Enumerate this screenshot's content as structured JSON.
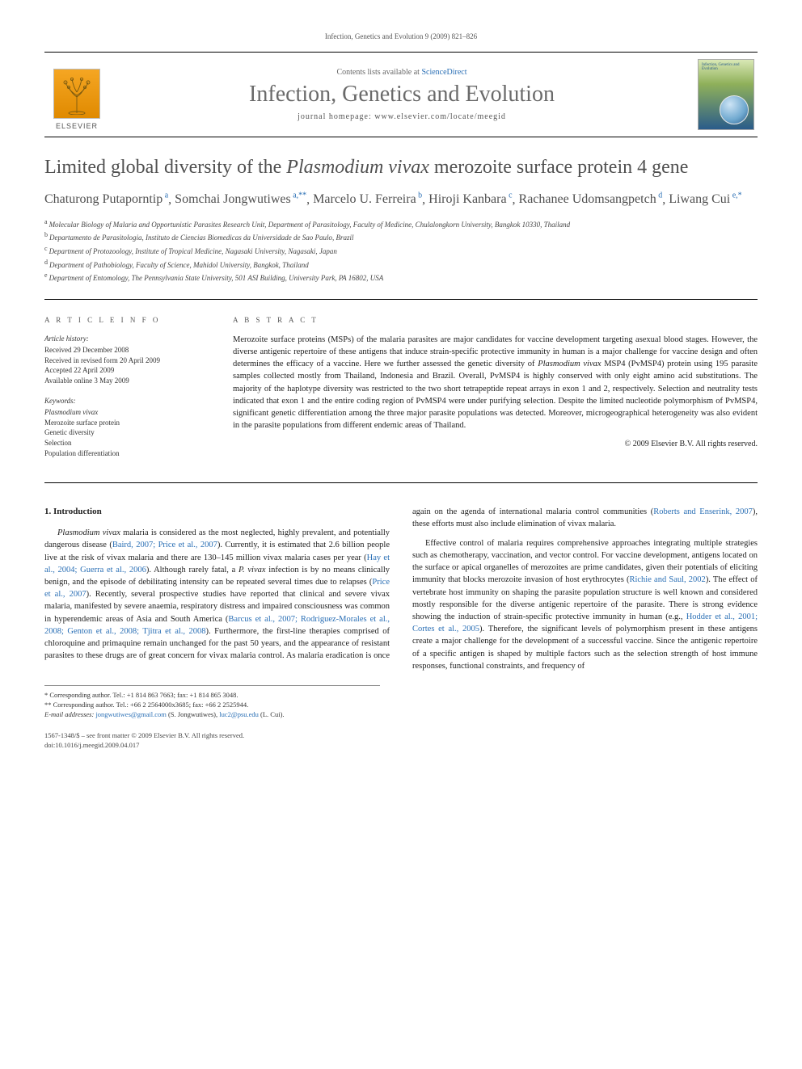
{
  "page_header": "Infection, Genetics and Evolution 9 (2009) 821–826",
  "masthead": {
    "publisher_word": "ELSEVIER",
    "contents_prefix": "Contents lists available at ",
    "contents_link": "ScienceDirect",
    "journal_name": "Infection, Genetics and Evolution",
    "homepage_label": "journal homepage: www.elsevier.com/locate/meegid",
    "cover_title": "Infection, Genetics and Evolution"
  },
  "article": {
    "title_pre": "Limited global diversity of the ",
    "title_ital": "Plasmodium vivax",
    "title_post": " merozoite surface protein 4 gene"
  },
  "authors": [
    {
      "name": "Chaturong Putaporntip",
      "sup": "a"
    },
    {
      "name": "Somchai Jongwutiwes",
      "sup": "a,**"
    },
    {
      "name": "Marcelo U. Ferreira",
      "sup": "b"
    },
    {
      "name": "Hiroji Kanbara",
      "sup": "c"
    },
    {
      "name": "Rachanee Udomsangpetch",
      "sup": "d"
    },
    {
      "name": "Liwang Cui",
      "sup": "e,*"
    }
  ],
  "affiliations": [
    {
      "key": "a",
      "text": "Molecular Biology of Malaria and Opportunistic Parasites Research Unit, Department of Parasitology, Faculty of Medicine, Chulalongkorn University, Bangkok 10330, Thailand"
    },
    {
      "key": "b",
      "text": "Departamento de Parasitologia, Instituto de Ciencias Biomedicas da Universidade de Sao Paulo, Brazil"
    },
    {
      "key": "c",
      "text": "Department of Protozoology, Institute of Tropical Medicine, Nagasaki University, Nagasaki, Japan"
    },
    {
      "key": "d",
      "text": "Department of Pathobiology, Faculty of Science, Mahidol University, Bangkok, Thailand"
    },
    {
      "key": "e",
      "text": "Department of Entomology, The Pennsylvania State University, 501 ASI Building, University Park, PA 16802, USA"
    }
  ],
  "article_info": {
    "head": "A R T I C L E   I N F O",
    "history_head": "Article history:",
    "history": [
      "Received 29 December 2008",
      "Received in revised form 20 April 2009",
      "Accepted 22 April 2009",
      "Available online 3 May 2009"
    ],
    "keywords_head": "Keywords:",
    "keywords": [
      "Plasmodium vivax",
      "Merozoite surface protein",
      "Genetic diversity",
      "Selection",
      "Population differentiation"
    ]
  },
  "abstract": {
    "head": "A B S T R A C T",
    "body_parts": [
      {
        "t": "Merozoite surface proteins (MSPs) of the malaria parasites are major candidates for vaccine development targeting asexual blood stages. However, the diverse antigenic repertoire of these antigens that induce strain-specific protective immunity in human is a major challenge for vaccine design and often determines the efficacy of a vaccine. Here we further assessed the genetic diversity of "
      },
      {
        "t": "Plasmodium vivax",
        "ital": true
      },
      {
        "t": " MSP4 (PvMSP4) protein using 195 parasite samples collected mostly from Thailand, Indonesia and Brazil. Overall, PvMSP4 is highly conserved with only eight amino acid substitutions. The majority of the haplotype diversity was restricted to the two short tetrapeptide repeat arrays in exon 1 and 2, respectively. Selection and neutrality tests indicated that exon 1 and the entire coding region of PvMSP4 were under purifying selection. Despite the limited nucleotide polymorphism of PvMSP4, significant genetic differentiation among the three major parasite populations was detected. Moreover, microgeographical heterogeneity was also evident in the parasite populations from different endemic areas of Thailand."
      }
    ],
    "copyright": "© 2009 Elsevier B.V. All rights reserved."
  },
  "intro": {
    "heading": "1. Introduction",
    "p1_parts": [
      {
        "t": "Plasmodium vivax",
        "ital": true
      },
      {
        "t": " malaria is considered as the most neglected, highly prevalent, and potentially dangerous disease ("
      },
      {
        "t": "Baird, 2007; Price et al., 2007",
        "cite": true
      },
      {
        "t": "). Currently, it is estimated that 2.6 billion people live at the risk of vivax malaria and there are 130–145 million vivax malaria cases per year ("
      },
      {
        "t": "Hay et al., 2004; Guerra et al., 2006",
        "cite": true
      },
      {
        "t": "). Although rarely fatal, a "
      },
      {
        "t": "P. vivax",
        "ital": true
      },
      {
        "t": " infection is by no means clinically benign, and the episode of debilitating intensity can be repeated several times due to relapses ("
      },
      {
        "t": "Price et al., 2007",
        "cite": true
      },
      {
        "t": "). Recently, several prospective studies have reported that clinical and severe vivax malaria, manifested by severe anaemia, respiratory distress and impaired consciousness was common in hyperendemic areas of Asia and South America ("
      },
      {
        "t": "Barcus et al., 2007; Rodriguez-Morales et al., 2008; Genton et al., 2008; Tjitra et al., 2008",
        "cite": true
      },
      {
        "t": "). Furthermore, the first-line therapies comprised of chloroquine and primaquine remain unchanged for the past 50 years, and the appearance of resistant parasites to these drugs are of great concern for vivax malaria control. As malaria eradication is once again on the agenda of international malaria control communities ("
      },
      {
        "t": "Roberts and Enserink, 2007",
        "cite": true
      },
      {
        "t": "), these efforts must also include elimination of vivax malaria."
      }
    ],
    "p2_parts": [
      {
        "t": "Effective control of malaria requires comprehensive approaches integrating multiple strategies such as chemotherapy, vaccination, and vector control. For vaccine development, antigens located on the surface or apical organelles of merozoites are prime candidates, given their potentials of eliciting immunity that blocks merozoite invasion of host erythrocytes ("
      },
      {
        "t": "Richie and Saul, 2002",
        "cite": true
      },
      {
        "t": "). The effect of vertebrate host immunity on shaping the parasite population structure is well known and considered mostly responsible for the diverse antigenic repertoire of the parasite. There is strong evidence showing the induction of strain-specific protective immunity in human (e.g., "
      },
      {
        "t": "Hodder et al., 2001; Cortes et al., 2005",
        "cite": true
      },
      {
        "t": "). Therefore, the significant levels of polymorphism present in these antigens create a major challenge for the development of a successful vaccine. Since the antigenic repertoire of a specific antigen is shaped by multiple factors such as the selection strength of host immune responses, functional constraints, and frequency of"
      }
    ]
  },
  "footnotes": {
    "corr1": "* Corresponding author. Tel.: +1 814 863 7663; fax: +1 814 865 3048.",
    "corr2": "** Corresponding author. Tel.: +66 2 2564000x3685; fax: +66 2 2525944.",
    "email_label": "E-mail addresses:",
    "email1": "jongwutiwes@gmail.com",
    "email1_who": " (S. Jongwutiwes), ",
    "email2": "luc2@psu.edu",
    "email2_who": " (L. Cui)."
  },
  "bottom": {
    "line1": "1567-1348/$ – see front matter © 2009 Elsevier B.V. All rights reserved.",
    "line2": "doi:10.1016/j.meegid.2009.04.017"
  },
  "colors": {
    "link": "#2a6fb5",
    "heading_gray": "#505050"
  }
}
